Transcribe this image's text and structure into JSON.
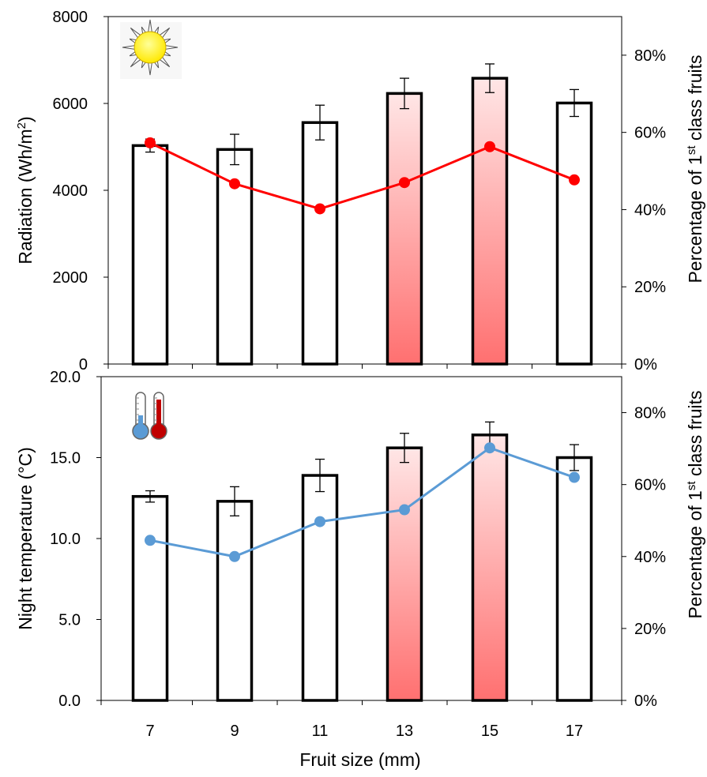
{
  "chart_data": [
    {
      "type": "bar",
      "panel": "top",
      "categories": [
        "7",
        "9",
        "11",
        "13",
        "15",
        "17"
      ],
      "series": [
        {
          "values": [
            5030,
            4940,
            5560,
            6230,
            6580,
            6010
          ],
          "errors": [
            150,
            350,
            400,
            350,
            330,
            310
          ],
          "axis": "left",
          "bar_colors": [
            "white",
            "white",
            "white",
            "red-gradient",
            "red-gradient",
            "white"
          ]
        },
        {
          "type": "line",
          "values": [
            0.573,
            0.467,
            0.402,
            0.47,
            0.563,
            0.477
          ],
          "axis": "right",
          "color": "#FF0000"
        }
      ],
      "ylabel": "Radiation (Wh/m²)",
      "ylabel_parts": {
        "main": "Radiation (Wh/m",
        "sup": "2",
        "tail": ")"
      },
      "ylim": [
        0,
        8000
      ],
      "yticks": [
        "0",
        "2000",
        "4000",
        "6000",
        "8000"
      ],
      "y2label_parts": {
        "pre": "Percentage of 1",
        "sup": "st",
        "post": " class fruits"
      },
      "y2lim": [
        0,
        0.9
      ],
      "y2ticks": [
        "0%",
        "20%",
        "40%",
        "60%",
        "80%"
      ],
      "icon": "sun-icon",
      "grid": false
    },
    {
      "type": "bar",
      "panel": "bottom",
      "categories": [
        "7",
        "9",
        "11",
        "13",
        "15",
        "17"
      ],
      "series": [
        {
          "values": [
            12.6,
            12.3,
            13.9,
            15.6,
            16.4,
            15.0
          ],
          "errors": [
            0.35,
            0.9,
            1.0,
            0.9,
            0.8,
            0.8
          ],
          "axis": "left",
          "bar_colors": [
            "white",
            "white",
            "white",
            "red-gradient",
            "red-gradient",
            "white"
          ]
        },
        {
          "type": "line",
          "values": [
            0.445,
            0.4,
            0.497,
            0.53,
            0.702,
            0.62
          ],
          "axis": "right",
          "color": "#5B9BD5"
        }
      ],
      "ylabel": "Night temperature (°C)",
      "ylim": [
        0,
        20
      ],
      "yticks": [
        "0.0",
        "5.0",
        "10.0",
        "15.0",
        "20.0"
      ],
      "y2label_parts": {
        "pre": "Percentage of 1",
        "sup": "st",
        "post": " class fruits"
      },
      "y2lim": [
        0,
        0.9
      ],
      "y2ticks": [
        "0%",
        "20%",
        "40%",
        "60%",
        "80%"
      ],
      "xlabel": "Fruit size (mm)",
      "icon": "thermometer-icon",
      "grid": false
    }
  ],
  "colors": {
    "bar_fill": "#FFFFFF",
    "bar_highlight_top": "#FFE6E6",
    "bar_highlight_bottom": "#FF7070",
    "top_line": "#FF0000",
    "bottom_line": "#5B9BD5"
  }
}
